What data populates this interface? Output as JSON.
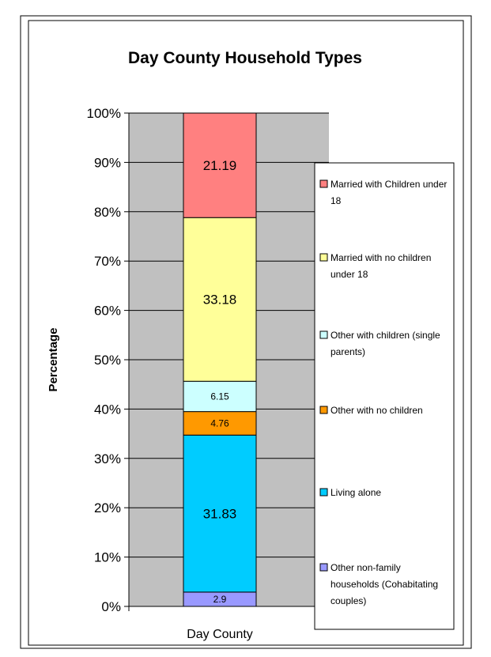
{
  "chart_data": {
    "type": "bar",
    "stacked": true,
    "percent_stacked": true,
    "title": "Day County Household Types",
    "xlabel": "",
    "ylabel": "Percentage",
    "categories": [
      "Day County"
    ],
    "ylim": [
      0,
      100
    ],
    "yticks": [
      "0%",
      "10%",
      "20%",
      "30%",
      "40%",
      "50%",
      "60%",
      "70%",
      "80%",
      "90%",
      "100%"
    ],
    "grid": true,
    "legend_position": "right",
    "series": [
      {
        "name": "Other non-family households (Cohabitating couples)",
        "legend_lines": [
          "Other non-family",
          "households (Cohabitating",
          "couples)"
        ],
        "values": [
          2.9
        ],
        "label": "2.9",
        "color": "#9999ff"
      },
      {
        "name": "Living alone",
        "legend_lines": [
          "Living alone"
        ],
        "values": [
          31.83
        ],
        "label": "31.83",
        "color": "#00ccff"
      },
      {
        "name": "Other with no children",
        "legend_lines": [
          "Other with no children"
        ],
        "values": [
          4.76
        ],
        "label": "4.76",
        "color": "#ff9900"
      },
      {
        "name": "Other with children (single parents)",
        "legend_lines": [
          "Other with children (single",
          "parents)"
        ],
        "values": [
          6.15
        ],
        "label": "6.15",
        "color": "#ccffff"
      },
      {
        "name": "Married with no children under 18",
        "legend_lines": [
          "Married with no children",
          "under 18"
        ],
        "values": [
          33.18
        ],
        "label": "33.18",
        "color": "#ffff99"
      },
      {
        "name": "Married with Children under 18",
        "legend_lines": [
          "Married with Children under",
          "18"
        ],
        "values": [
          21.19
        ],
        "label": "21.19",
        "color": "#ff8080"
      }
    ]
  },
  "colors": {
    "plot_background": "#c0c0c0",
    "border": "#000000",
    "gridline": "#000000"
  }
}
